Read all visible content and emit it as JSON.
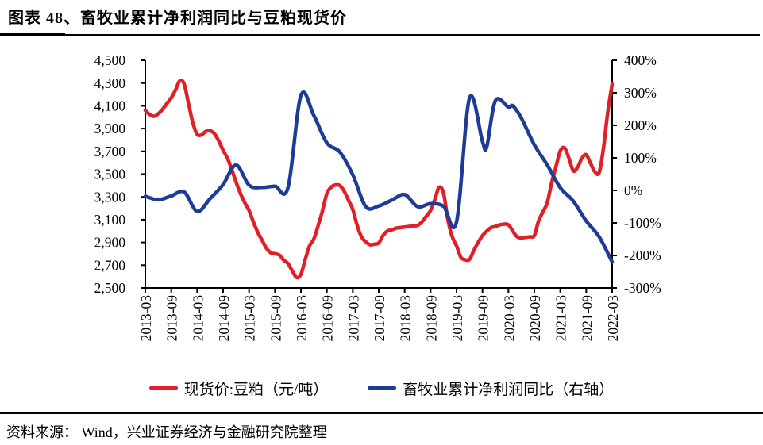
{
  "header": {
    "title": "图表 48、畜牧业累计净利润同比与豆粕现货价"
  },
  "footer": {
    "source": "资料来源： Wind，兴业证券经济与金融研究院整理"
  },
  "colors": {
    "spot_price_line": "#e02026",
    "profit_line": "#1e3c96",
    "axis": "#000000"
  },
  "legend": {
    "items": [
      {
        "label": "现货价:豆粕（元/吨）",
        "color": "#e02026"
      },
      {
        "label": "畜牧业累计净利润同比（右轴）",
        "color": "#1e3c96"
      }
    ]
  },
  "chart_data": {
    "type": "line",
    "smooth": true,
    "grid": false,
    "legend_position": "bottom",
    "title": "图表 48、畜牧业累计净利润同比与豆粕现货价",
    "x_axis": {
      "start": "2013-03",
      "end": "2022-03",
      "months_span": 108,
      "tick_labels": [
        "2013-03",
        "2013-09",
        "2014-03",
        "2014-09",
        "2015-03",
        "2015-09",
        "2016-03",
        "2016-09",
        "2017-03",
        "2017-09",
        "2018-03",
        "2018-09",
        "2019-03",
        "2019-09",
        "2020-03",
        "2020-09",
        "2021-03",
        "2021-09",
        "2022-03"
      ]
    },
    "left_axis": {
      "min": 2500,
      "max": 4500,
      "step": 200,
      "tick_labels": [
        "4,500",
        "4,300",
        "4,100",
        "3,900",
        "3,700",
        "3,500",
        "3,300",
        "3,100",
        "2,900",
        "2,700",
        "2,500"
      ]
    },
    "right_axis": {
      "min": -300,
      "max": 400,
      "step": 100,
      "tick_labels": [
        "400%",
        "300%",
        "200%",
        "100%",
        "0%",
        "-100%",
        "-200%",
        "-300%"
      ]
    },
    "series": [
      {
        "name": "现货价:豆粕（元/吨）",
        "axis": "left",
        "color": "#e02026",
        "points_unit": "[months since 2013-03, yuan/ton]",
        "points": [
          [
            0,
            4060
          ],
          [
            1,
            4025
          ],
          [
            2,
            4008
          ],
          [
            3,
            4030
          ],
          [
            4,
            4070
          ],
          [
            5,
            4120
          ],
          [
            6,
            4170
          ],
          [
            7,
            4240
          ],
          [
            8,
            4320
          ],
          [
            9,
            4290
          ],
          [
            10,
            4120
          ],
          [
            11,
            3950
          ],
          [
            12,
            3850
          ],
          [
            13,
            3845
          ],
          [
            14,
            3875
          ],
          [
            15,
            3880
          ],
          [
            16,
            3855
          ],
          [
            17,
            3790
          ],
          [
            18,
            3710
          ],
          [
            19,
            3640
          ],
          [
            20,
            3540
          ],
          [
            21,
            3430
          ],
          [
            22,
            3330
          ],
          [
            23,
            3250
          ],
          [
            24,
            3180
          ],
          [
            25,
            3080
          ],
          [
            26,
            2990
          ],
          [
            27,
            2920
          ],
          [
            28,
            2850
          ],
          [
            29,
            2810
          ],
          [
            30,
            2800
          ],
          [
            31,
            2790
          ],
          [
            32,
            2745
          ],
          [
            33,
            2715
          ],
          [
            34,
            2650
          ],
          [
            35,
            2592
          ],
          [
            36,
            2620
          ],
          [
            37,
            2750
          ],
          [
            38,
            2870
          ],
          [
            39,
            2930
          ],
          [
            40,
            3050
          ],
          [
            41,
            3180
          ],
          [
            42,
            3330
          ],
          [
            43,
            3385
          ],
          [
            44,
            3405
          ],
          [
            45,
            3400
          ],
          [
            46,
            3350
          ],
          [
            47,
            3270
          ],
          [
            48,
            3190
          ],
          [
            49,
            3050
          ],
          [
            50,
            2950
          ],
          [
            51,
            2905
          ],
          [
            52,
            2880
          ],
          [
            53,
            2885
          ],
          [
            54,
            2895
          ],
          [
            55,
            2960
          ],
          [
            56,
            3000
          ],
          [
            57,
            3010
          ],
          [
            58,
            3025
          ],
          [
            59,
            3030
          ],
          [
            60,
            3035
          ],
          [
            61,
            3040
          ],
          [
            62,
            3045
          ],
          [
            63,
            3050
          ],
          [
            64,
            3080
          ],
          [
            65,
            3130
          ],
          [
            66,
            3180
          ],
          [
            67,
            3280
          ],
          [
            68,
            3385
          ],
          [
            69,
            3330
          ],
          [
            70,
            3100
          ],
          [
            71,
            2950
          ],
          [
            72,
            2870
          ],
          [
            73,
            2770
          ],
          [
            74,
            2748
          ],
          [
            75,
            2750
          ],
          [
            76,
            2830
          ],
          [
            77,
            2900
          ],
          [
            78,
            2960
          ],
          [
            79,
            3000
          ],
          [
            80,
            3030
          ],
          [
            81,
            3040
          ],
          [
            82,
            3055
          ],
          [
            83,
            3060
          ],
          [
            84,
            3055
          ],
          [
            85,
            3000
          ],
          [
            86,
            2950
          ],
          [
            87,
            2940
          ],
          [
            88,
            2945
          ],
          [
            89,
            2950
          ],
          [
            90,
            2960
          ],
          [
            91,
            3090
          ],
          [
            92,
            3170
          ],
          [
            93,
            3250
          ],
          [
            94,
            3425
          ],
          [
            95,
            3565
          ],
          [
            96,
            3705
          ],
          [
            97,
            3730
          ],
          [
            98,
            3640
          ],
          [
            99,
            3530
          ],
          [
            100,
            3560
          ],
          [
            101,
            3640
          ],
          [
            102,
            3670
          ],
          [
            103,
            3595
          ],
          [
            104,
            3520
          ],
          [
            105,
            3515
          ],
          [
            106,
            3730
          ],
          [
            107,
            4050
          ],
          [
            108,
            4290
          ]
        ]
      },
      {
        "name": "畜牧业累计净利润同比（右轴）",
        "axis": "right",
        "color": "#1e3c96",
        "points_unit": "[months since 2013-03, percent]",
        "points": [
          [
            0,
            -18
          ],
          [
            3,
            -29
          ],
          [
            6,
            -17
          ],
          [
            9,
            -5
          ],
          [
            12,
            -65
          ],
          [
            15,
            -25
          ],
          [
            18,
            18
          ],
          [
            21,
            78
          ],
          [
            24,
            16
          ],
          [
            27,
            9
          ],
          [
            30,
            13
          ],
          [
            33,
            8
          ],
          [
            36,
            292
          ],
          [
            39,
            230
          ],
          [
            42,
            146
          ],
          [
            45,
            118
          ],
          [
            48,
            48
          ],
          [
            51,
            -50
          ],
          [
            54,
            -48
          ],
          [
            57,
            -30
          ],
          [
            60,
            -13
          ],
          [
            63,
            -50
          ],
          [
            66,
            -41
          ],
          [
            69,
            -49
          ],
          [
            72,
            -97
          ],
          [
            75,
            284
          ],
          [
            78,
            150
          ],
          [
            79,
            134
          ],
          [
            81,
            276
          ],
          [
            84,
            256
          ],
          [
            85,
            260
          ],
          [
            87,
            222
          ],
          [
            90,
            140
          ],
          [
            93,
            78
          ],
          [
            96,
            8
          ],
          [
            99,
            -33
          ],
          [
            102,
            -94
          ],
          [
            105,
            -143
          ],
          [
            108,
            -220
          ]
        ]
      }
    ]
  }
}
